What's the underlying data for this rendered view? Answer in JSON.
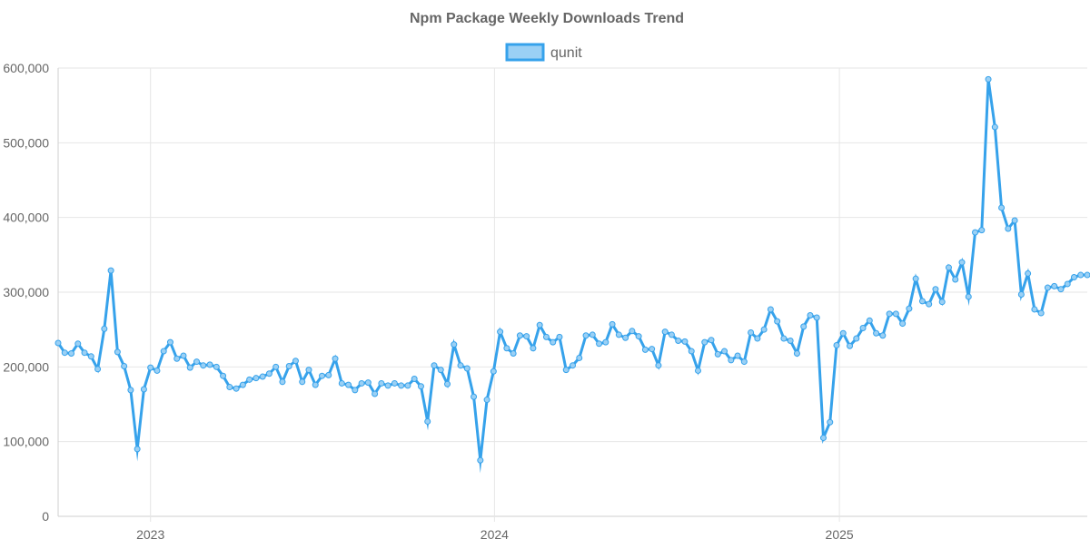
{
  "chart_data": {
    "type": "line",
    "title": "Npm Package Weekly Downloads Trend",
    "xlabel": "",
    "ylabel": "",
    "legend": {
      "position": "top-center",
      "entries": [
        "qunit"
      ]
    },
    "grid": true,
    "colors": {
      "line": "#36a2eb",
      "fill": "#9ad0f5",
      "text": "#666666",
      "grid": "#e6e6e6"
    },
    "x_start": "2022-09-25",
    "x_end": "2025-09-21",
    "xlim": [
      "2022-09-25",
      "2025-09-21"
    ],
    "x_tick_labels": [
      {
        "label": "2023",
        "date": "2023-01-01"
      },
      {
        "label": "2024",
        "date": "2024-01-01"
      },
      {
        "label": "2025",
        "date": "2025-01-01"
      }
    ],
    "ylim": [
      0,
      600000
    ],
    "y_ticks": [
      0,
      100000,
      200000,
      300000,
      400000,
      500000,
      600000
    ],
    "y_tick_labels": [
      "0",
      "100,000",
      "200,000",
      "300,000",
      "400,000",
      "500,000",
      "600,000"
    ],
    "series": [
      {
        "name": "qunit",
        "values": [
          232000,
          219000,
          218000,
          231000,
          219000,
          214000,
          197000,
          251000,
          329000,
          220000,
          201000,
          169000,
          90000,
          170000,
          199000,
          195000,
          221000,
          233000,
          211000,
          215000,
          199000,
          207000,
          202000,
          203000,
          200000,
          188000,
          173000,
          171000,
          176000,
          183000,
          185000,
          187000,
          191000,
          200000,
          180000,
          201000,
          208000,
          180000,
          196000,
          176000,
          188000,
          189000,
          211000,
          178000,
          176000,
          169000,
          178000,
          179000,
          164000,
          178000,
          175000,
          178000,
          175000,
          175000,
          184000,
          174000,
          127000,
          202000,
          196000,
          177000,
          230000,
          202000,
          198000,
          160000,
          75000,
          156000,
          194000,
          247000,
          225000,
          218000,
          242000,
          241000,
          225000,
          256000,
          240000,
          233000,
          240000,
          196000,
          202000,
          212000,
          242000,
          243000,
          231000,
          233000,
          257000,
          243000,
          239000,
          248000,
          241000,
          223000,
          224000,
          202000,
          247000,
          243000,
          235000,
          234000,
          221000,
          195000,
          233000,
          236000,
          217000,
          221000,
          209000,
          215000,
          207000,
          246000,
          238000,
          250000,
          277000,
          261000,
          238000,
          235000,
          218000,
          254000,
          269000,
          266000,
          105000,
          126000,
          229000,
          245000,
          228000,
          238000,
          252000,
          262000,
          245000,
          242000,
          271000,
          271000,
          258000,
          278000,
          318000,
          288000,
          284000,
          304000,
          287000,
          333000,
          317000,
          340000,
          294000,
          380000,
          383000,
          585000,
          521000,
          413000,
          385000,
          396000,
          297000,
          325000,
          277000,
          272000,
          306000,
          308000,
          304000,
          311000,
          320000,
          323000,
          323000
        ]
      }
    ]
  }
}
